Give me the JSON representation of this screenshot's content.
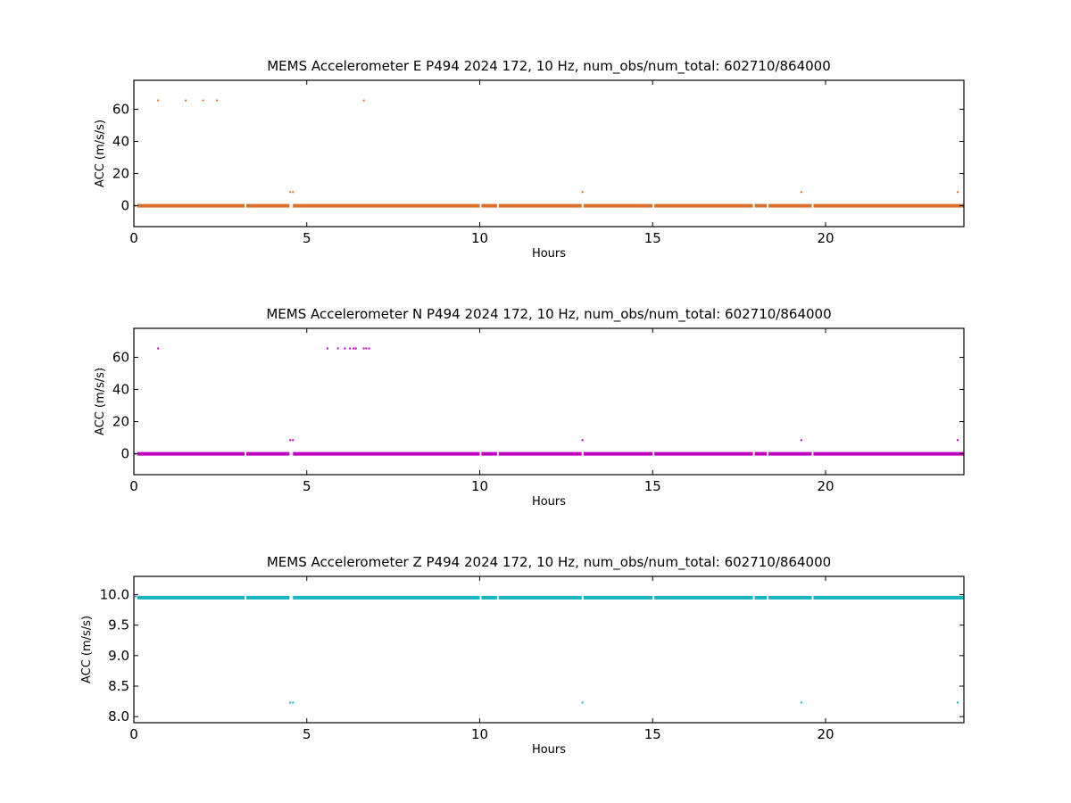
{
  "chart_data": [
    {
      "type": "scatter",
      "title": "MEMS Accelerometer E P494 2024 172, 10 Hz, num_obs/num_total: 602710/864000",
      "xlabel": "Hours",
      "ylabel": "ACC (m/s/s)",
      "xlim": [
        0,
        24
      ],
      "ylim": [
        -13,
        78
      ],
      "xticks": [
        0,
        5,
        10,
        15,
        20
      ],
      "yticks": [
        0,
        20,
        40,
        60
      ],
      "grid": false,
      "color": "#d9712b",
      "baseline": {
        "y": 0,
        "segments": [
          [
            0.1,
            3.2
          ],
          [
            3.25,
            4.5
          ],
          [
            4.6,
            10.0
          ],
          [
            10.05,
            10.5
          ],
          [
            10.55,
            12.95
          ],
          [
            13.0,
            15.0
          ],
          [
            15.05,
            17.9
          ],
          [
            17.95,
            18.3
          ],
          [
            18.35,
            19.6
          ],
          [
            19.65,
            24.0
          ]
        ]
      },
      "points": [
        {
          "x": 0.7,
          "y": 65.5
        },
        {
          "x": 1.5,
          "y": 65.5
        },
        {
          "x": 2.0,
          "y": 65.5
        },
        {
          "x": 2.4,
          "y": 65.5
        },
        {
          "x": 6.65,
          "y": 65.5
        },
        {
          "x": 4.52,
          "y": 8.5
        },
        {
          "x": 4.6,
          "y": 8.5
        },
        {
          "x": 12.97,
          "y": 8.5
        },
        {
          "x": 19.3,
          "y": 8.5
        },
        {
          "x": 23.82,
          "y": 8.5
        },
        {
          "x": 0.05,
          "y": 0.0
        }
      ]
    },
    {
      "type": "scatter",
      "title": "MEMS Accelerometer N P494 2024 172, 10 Hz, num_obs/num_total: 602710/864000",
      "xlabel": "Hours",
      "ylabel": "ACC (m/s/s)",
      "xlim": [
        0,
        24
      ],
      "ylim": [
        -13,
        78
      ],
      "xticks": [
        0,
        5,
        10,
        15,
        20
      ],
      "yticks": [
        0,
        20,
        40,
        60
      ],
      "grid": false,
      "color": "#c000c0",
      "baseline": {
        "y": 0,
        "segments": [
          [
            0.1,
            3.2
          ],
          [
            3.25,
            4.5
          ],
          [
            4.6,
            10.0
          ],
          [
            10.05,
            10.5
          ],
          [
            10.55,
            12.95
          ],
          [
            13.0,
            15.0
          ],
          [
            15.05,
            17.9
          ],
          [
            17.95,
            18.3
          ],
          [
            18.35,
            19.6
          ],
          [
            19.65,
            24.0
          ]
        ]
      },
      "points": [
        {
          "x": 0.7,
          "y": 65.5
        },
        {
          "x": 5.6,
          "y": 65.5
        },
        {
          "x": 5.9,
          "y": 65.5
        },
        {
          "x": 6.1,
          "y": 65.5
        },
        {
          "x": 6.25,
          "y": 65.5
        },
        {
          "x": 6.35,
          "y": 65.5
        },
        {
          "x": 6.42,
          "y": 65.5
        },
        {
          "x": 6.65,
          "y": 65.5
        },
        {
          "x": 6.72,
          "y": 65.5
        },
        {
          "x": 6.8,
          "y": 65.5
        },
        {
          "x": 4.52,
          "y": 8.5
        },
        {
          "x": 4.6,
          "y": 8.5
        },
        {
          "x": 12.97,
          "y": 8.5
        },
        {
          "x": 19.3,
          "y": 8.5
        },
        {
          "x": 23.82,
          "y": 8.5
        },
        {
          "x": 0.05,
          "y": 0.0
        }
      ]
    },
    {
      "type": "scatter",
      "title": "MEMS Accelerometer Z P494 2024 172, 10 Hz, num_obs/num_total: 602710/864000",
      "xlabel": "Hours",
      "ylabel": "ACC (m/s/s)",
      "xlim": [
        0,
        24
      ],
      "ylim": [
        7.9,
        10.3
      ],
      "xticks": [
        0,
        5,
        10,
        15,
        20
      ],
      "yticks": [
        8.0,
        8.5,
        9.0,
        9.5,
        10.0
      ],
      "ytick_labels": [
        "8.0",
        "8.5",
        "9.0",
        "9.5",
        "10.0"
      ],
      "grid": false,
      "color": "#17b3c0",
      "baseline": {
        "y": 9.95,
        "segments": [
          [
            0.1,
            3.2
          ],
          [
            3.25,
            4.5
          ],
          [
            4.6,
            10.0
          ],
          [
            10.05,
            10.5
          ],
          [
            10.55,
            12.95
          ],
          [
            13.0,
            15.0
          ],
          [
            15.05,
            17.9
          ],
          [
            17.95,
            18.3
          ],
          [
            18.35,
            19.6
          ],
          [
            19.65,
            24.0
          ]
        ]
      },
      "points": [
        {
          "x": 4.52,
          "y": 8.23
        },
        {
          "x": 4.6,
          "y": 8.23
        },
        {
          "x": 12.97,
          "y": 8.23
        },
        {
          "x": 19.3,
          "y": 8.23
        },
        {
          "x": 23.82,
          "y": 8.23
        },
        {
          "x": 0.05,
          "y": 9.97
        }
      ]
    }
  ]
}
